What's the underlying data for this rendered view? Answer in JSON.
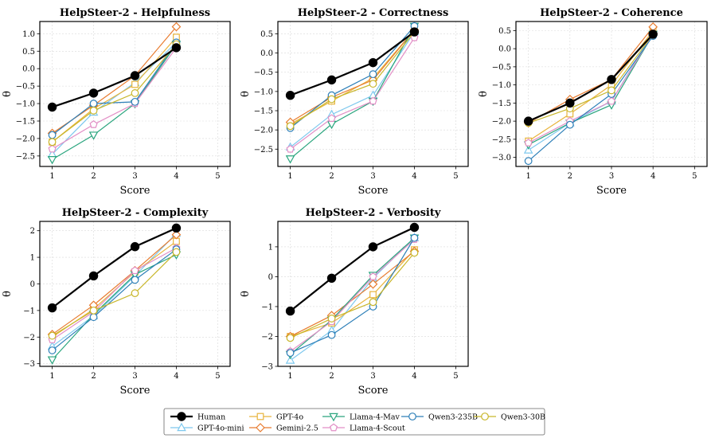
{
  "colors": {
    "Human": "#000000",
    "GPT-4o-mini": "#7ec8ee",
    "GPT-4o": "#e8b43c",
    "Gemini-2.5": "#e87b2e",
    "Llama-4-Mav": "#2aa57e",
    "Llama-4-Scout": "#e28fc6",
    "Qwen3-235B": "#2d7fb8",
    "Qwen3-30B": "#c8b62a"
  },
  "markers": {
    "Human": "circle-filled",
    "GPT-4o-mini": "triangle-up",
    "GPT-4o": "square",
    "Gemini-2.5": "diamond",
    "Llama-4-Mav": "triangle-down",
    "Llama-4-Scout": "pentagon",
    "Qwen3-235B": "circle",
    "Qwen3-30B": "circle"
  },
  "legend": {
    "placement": "bottom-center",
    "columns": [
      [
        "Human",
        "GPT-4o-mini"
      ],
      [
        "GPT-4o",
        "Gemini-2.5"
      ],
      [
        "Llama-4-Mav",
        "Llama-4-Scout"
      ],
      [
        "Qwen3-235B"
      ],
      [
        "Qwen3-30B"
      ]
    ]
  },
  "chart_data": [
    {
      "type": "line",
      "title": "HelpSteer-2 - Helpfulness",
      "xlabel": "Score",
      "ylabel": "θ",
      "xlim": [
        0.7,
        5.3
      ],
      "ylim": [
        -2.8,
        1.35
      ],
      "xticks": [
        1,
        2,
        3,
        4,
        5
      ],
      "yticks": [
        -2.5,
        -2.0,
        -1.5,
        -1.0,
        -0.5,
        0.0,
        0.5,
        1.0
      ],
      "ytick_labels": [
        "−2.5",
        "−2.0",
        "−1.5",
        "−1.0",
        "−0.5",
        "0.0",
        "0.5",
        "1.0"
      ],
      "grid": true,
      "x": [
        1,
        2,
        3,
        4
      ],
      "series": [
        {
          "name": "GPT-4o-mini",
          "values": [
            -2.45,
            -1.25,
            -0.4,
            0.75
          ]
        },
        {
          "name": "GPT-4o",
          "values": [
            -2.1,
            -1.15,
            -0.45,
            0.9
          ]
        },
        {
          "name": "Gemini-2.5",
          "values": [
            -1.85,
            -1.05,
            -0.2,
            1.2
          ]
        },
        {
          "name": "Llama-4-Mav",
          "values": [
            -2.6,
            -1.9,
            -1.0,
            0.7
          ]
        },
        {
          "name": "Llama-4-Scout",
          "values": [
            -2.3,
            -1.6,
            -1.0,
            0.6
          ]
        },
        {
          "name": "Qwen3-235B",
          "values": [
            -1.9,
            -1.0,
            -0.95,
            0.75
          ]
        },
        {
          "name": "Qwen3-30B",
          "values": [
            -2.1,
            -1.2,
            -0.7,
            0.7
          ]
        },
        {
          "name": "Human",
          "values": [
            -1.1,
            -0.7,
            -0.2,
            0.6
          ]
        }
      ]
    },
    {
      "type": "line",
      "title": "HelpSteer-2 - Correctness",
      "xlabel": "Score",
      "ylabel": "θ",
      "xlim": [
        0.7,
        5.3
      ],
      "ylim": [
        -2.95,
        0.82
      ],
      "xticks": [
        1,
        2,
        3,
        4,
        5
      ],
      "yticks": [
        -2.5,
        -2.0,
        -1.5,
        -1.0,
        -0.5,
        0.0,
        0.5
      ],
      "ytick_labels": [
        "−2.5",
        "−2.0",
        "−1.5",
        "−1.0",
        "−0.5",
        "0.0",
        "0.5"
      ],
      "grid": true,
      "x": [
        1,
        2,
        3,
        4
      ],
      "series": [
        {
          "name": "GPT-4o-mini",
          "values": [
            -2.45,
            -1.6,
            -1.1,
            0.55
          ]
        },
        {
          "name": "GPT-4o",
          "values": [
            -1.85,
            -1.25,
            -0.65,
            0.6
          ]
        },
        {
          "name": "Gemini-2.5",
          "values": [
            -1.8,
            -1.15,
            -0.7,
            0.6
          ]
        },
        {
          "name": "Llama-4-Mav",
          "values": [
            -2.75,
            -1.85,
            -1.25,
            0.7
          ]
        },
        {
          "name": "Llama-4-Scout",
          "values": [
            -2.5,
            -1.7,
            -1.25,
            0.4
          ]
        },
        {
          "name": "Qwen3-235B",
          "values": [
            -1.95,
            -1.1,
            -0.55,
            0.7
          ]
        },
        {
          "name": "Qwen3-30B",
          "values": [
            -1.9,
            -1.2,
            -0.8,
            0.55
          ]
        },
        {
          "name": "Human",
          "values": [
            -1.1,
            -0.7,
            -0.25,
            0.55
          ]
        }
      ]
    },
    {
      "type": "line",
      "title": "HelpSteer-2 - Coherence",
      "xlabel": "Score",
      "ylabel": "θ",
      "xlim": [
        0.7,
        5.3
      ],
      "ylim": [
        -3.25,
        0.75
      ],
      "xticks": [
        1,
        2,
        3,
        4,
        5
      ],
      "yticks": [
        -3.0,
        -2.5,
        -2.0,
        -1.5,
        -1.0,
        -0.5,
        0.0,
        0.5
      ],
      "ytick_labels": [
        "−3.0",
        "−2.5",
        "−2.0",
        "−1.5",
        "−1.0",
        "−0.5",
        "0.0",
        "0.5"
      ],
      "grid": true,
      "x": [
        1,
        2,
        3,
        4
      ],
      "series": [
        {
          "name": "GPT-4o-mini",
          "values": [
            -2.8,
            -2.05,
            -1.45,
            0.45
          ]
        },
        {
          "name": "GPT-4o",
          "values": [
            -2.55,
            -1.8,
            -1.0,
            0.5
          ]
        },
        {
          "name": "Gemini-2.5",
          "values": [
            -2.05,
            -1.4,
            -0.85,
            0.6
          ]
        },
        {
          "name": "Llama-4-Mav",
          "values": [
            -2.65,
            -2.05,
            -1.55,
            0.4
          ]
        },
        {
          "name": "Llama-4-Scout",
          "values": [
            -2.6,
            -2.0,
            -1.45,
            0.4
          ]
        },
        {
          "name": "Qwen3-235B",
          "values": [
            -3.1,
            -2.1,
            -1.25,
            0.35
          ]
        },
        {
          "name": "Qwen3-30B",
          "values": [
            -2.05,
            -1.65,
            -1.15,
            0.4
          ]
        },
        {
          "name": "Human",
          "values": [
            -2.0,
            -1.5,
            -0.85,
            0.4
          ]
        }
      ]
    },
    {
      "type": "line",
      "title": "HelpSteer-2 - Complexity",
      "xlabel": "Score",
      "ylabel": "θ",
      "xlim": [
        0.7,
        5.3
      ],
      "ylim": [
        -3.1,
        2.35
      ],
      "xticks": [
        1,
        2,
        3,
        4,
        5
      ],
      "yticks": [
        -3,
        -2,
        -1,
        0,
        1,
        2
      ],
      "ytick_labels": [
        "−3",
        "−2",
        "−1",
        "0",
        "1",
        "2"
      ],
      "grid": true,
      "x": [
        1,
        2,
        3,
        4
      ],
      "series": [
        {
          "name": "GPT-4o-mini",
          "values": [
            -2.35,
            -1.2,
            0.3,
            1.9
          ]
        },
        {
          "name": "GPT-4o",
          "values": [
            -2.0,
            -0.95,
            0.45,
            1.6
          ]
        },
        {
          "name": "Gemini-2.5",
          "values": [
            -1.9,
            -0.8,
            0.5,
            1.85
          ]
        },
        {
          "name": "Llama-4-Mav",
          "values": [
            -2.85,
            -1.15,
            0.35,
            1.1
          ]
        },
        {
          "name": "Llama-4-Scout",
          "values": [
            -2.1,
            -1.05,
            0.5,
            1.35
          ]
        },
        {
          "name": "Qwen3-235B",
          "values": [
            -2.5,
            -1.25,
            0.15,
            1.3
          ]
        },
        {
          "name": "Qwen3-30B",
          "values": [
            -1.95,
            -1.0,
            -0.35,
            1.2
          ]
        },
        {
          "name": "Human",
          "values": [
            -0.9,
            0.3,
            1.4,
            2.1
          ]
        }
      ]
    },
    {
      "type": "line",
      "title": "HelpSteer-2 - Verbosity",
      "xlabel": "Score",
      "ylabel": "θ",
      "xlim": [
        0.7,
        5.3
      ],
      "ylim": [
        -3.0,
        1.85
      ],
      "xticks": [
        1,
        2,
        3,
        4,
        5
      ],
      "yticks": [
        -3,
        -2,
        -1,
        0,
        1
      ],
      "ytick_labels": [
        "−3",
        "−2",
        "−1",
        "0",
        "1"
      ],
      "grid": true,
      "x": [
        1,
        2,
        3,
        4
      ],
      "series": [
        {
          "name": "GPT-4o-mini",
          "values": [
            -2.8,
            -1.8,
            -0.05,
            1.3
          ]
        },
        {
          "name": "GPT-4o",
          "values": [
            -2.0,
            -1.55,
            -0.6,
            0.9
          ]
        },
        {
          "name": "Gemini-2.5",
          "values": [
            -2.0,
            -1.3,
            -0.25,
            0.85
          ]
        },
        {
          "name": "Llama-4-Mav",
          "values": [
            -2.6,
            -1.45,
            0.05,
            1.3
          ]
        },
        {
          "name": "Llama-4-Scout",
          "values": [
            -2.5,
            -1.5,
            0.0,
            1.25
          ]
        },
        {
          "name": "Qwen3-235B",
          "values": [
            -2.55,
            -1.95,
            -1.0,
            1.3
          ]
        },
        {
          "name": "Qwen3-30B",
          "values": [
            -2.05,
            -1.4,
            -0.85,
            0.8
          ]
        },
        {
          "name": "Human",
          "values": [
            -1.15,
            -0.05,
            1.0,
            1.65
          ]
        }
      ]
    }
  ]
}
